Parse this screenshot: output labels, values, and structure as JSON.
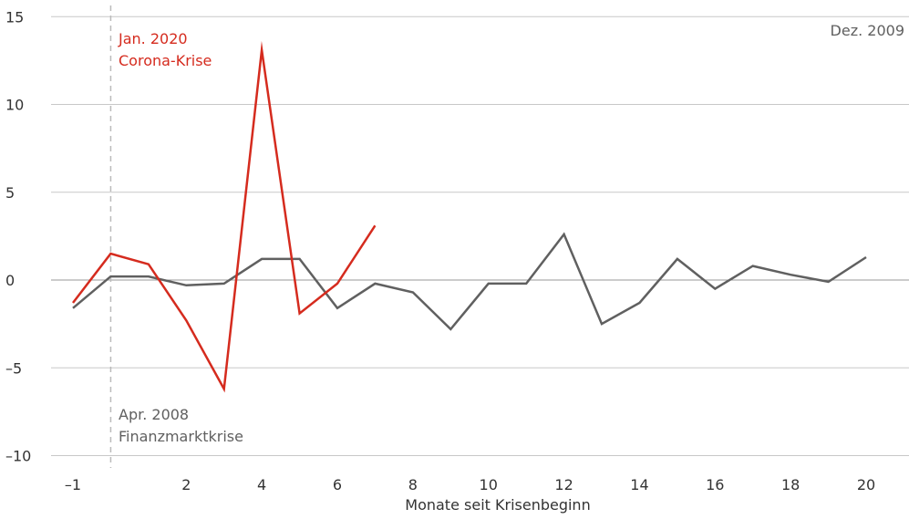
{
  "chart_data": {
    "type": "line",
    "xlabel": "Monate seit Krisenbeginn",
    "ylabel": "",
    "xlim": [
      -1,
      20
    ],
    "ylim": [
      -10,
      15
    ],
    "x_ticks": [
      -1,
      2,
      4,
      6,
      8,
      10,
      12,
      14,
      16,
      18,
      20
    ],
    "x_tick_labels": [
      "–1",
      "2",
      "4",
      "6",
      "8",
      "10",
      "12",
      "14",
      "16",
      "18",
      "20"
    ],
    "y_ticks": [
      15,
      10,
      5,
      0,
      -5,
      -10
    ],
    "y_tick_labels": [
      "15",
      "10",
      "5",
      "0",
      "–5",
      "–10"
    ],
    "grid": "horizontal",
    "crisis_start_x": 0,
    "series": [
      {
        "color": "#606060",
        "x": [
          -1,
          0,
          1,
          2,
          3,
          4,
          5,
          6,
          7,
          8,
          9,
          10,
          11,
          12,
          13,
          14,
          15,
          16,
          17,
          18,
          19,
          20
        ],
        "values": [
          -1.6,
          0.2,
          0.2,
          -0.3,
          -0.2,
          1.2,
          1.2,
          -1.6,
          -0.2,
          -0.7,
          -2.8,
          -0.2,
          -0.2,
          2.6,
          -2.5,
          -1.3,
          1.2,
          -0.5,
          0.8,
          0.3,
          -0.1,
          1.3
        ]
      },
      {
        "color": "#d52b1e",
        "x": [
          -1,
          0,
          1,
          2,
          3,
          4,
          5,
          6,
          7
        ],
        "values": [
          -1.3,
          1.5,
          0.9,
          -2.3,
          -6.2,
          13.1,
          -1.9,
          -0.2,
          3.1
        ]
      }
    ],
    "annotations": {
      "corona_line1": "Jan. 2020",
      "corona_line2": "Corona-Krise",
      "finanz_line1": "Apr. 2008",
      "finanz_line2": "Finanzmarktkrise",
      "end_label": "Dez. 2009"
    }
  }
}
